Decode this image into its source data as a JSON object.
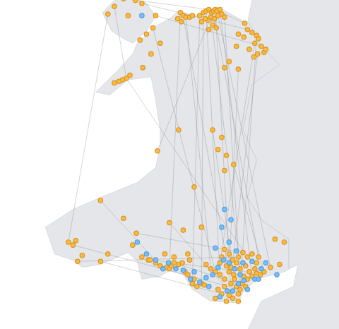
{
  "chart_data": {
    "type": "map",
    "series": [
      {
        "color": "#d4962e",
        "marker": "circle",
        "points": [
          [
            -3.62,
            53.3
          ],
          [
            -3.58,
            53.32
          ],
          [
            -3.55,
            53.33
          ],
          [
            -3.52,
            53.34
          ],
          [
            -3.49,
            53.32
          ],
          [
            -3.47,
            53.33
          ],
          [
            -3.45,
            53.34
          ],
          [
            -3.43,
            53.33
          ],
          [
            -3.4,
            53.34
          ],
          [
            -3.5,
            53.29
          ],
          [
            -3.53,
            53.27
          ],
          [
            -3.56,
            53.28
          ],
          [
            -3.6,
            53.26
          ],
          [
            -3.46,
            53.28
          ],
          [
            -3.42,
            53.3
          ],
          [
            -3.38,
            53.31
          ],
          [
            -3.35,
            53.29
          ],
          [
            -3.48,
            53.24
          ],
          [
            -3.44,
            53.22
          ],
          [
            -3.52,
            53.21
          ],
          [
            -3.83,
            53.32
          ],
          [
            -3.8,
            53.3
          ],
          [
            -3.77,
            53.29
          ],
          [
            -3.73,
            53.29
          ],
          [
            -3.7,
            53.3
          ],
          [
            -3.86,
            53.28
          ],
          [
            -3.82,
            53.26
          ],
          [
            -4.1,
            53.3
          ],
          [
            -4.13,
            53.22
          ],
          [
            -4.25,
            53.38
          ],
          [
            -4.32,
            53.4
          ],
          [
            -4.45,
            53.41
          ],
          [
            -4.55,
            53.36
          ],
          [
            -4.62,
            53.31
          ],
          [
            -4.4,
            53.3
          ],
          [
            -4.27,
            53.14
          ],
          [
            -4.2,
            53.18
          ],
          [
            -4.05,
            53.12
          ],
          [
            -4.15,
            53.05
          ],
          [
            -4.42,
            52.89
          ],
          [
            -4.46,
            52.88
          ],
          [
            -4.5,
            52.87
          ],
          [
            -4.55,
            52.86
          ],
          [
            -4.38,
            52.91
          ],
          [
            -4.24,
            52.96
          ],
          [
            -3.13,
            53.25
          ],
          [
            -3.1,
            53.21
          ],
          [
            -3.05,
            53.19
          ],
          [
            -3.0,
            53.17
          ],
          [
            -2.98,
            53.15
          ],
          [
            -3.02,
            53.12
          ],
          [
            -2.95,
            53.1
          ],
          [
            -2.99,
            53.05
          ],
          [
            -3.03,
            53.03
          ],
          [
            -2.92,
            53.06
          ],
          [
            -2.9,
            53.08
          ],
          [
            -3.08,
            53.08
          ],
          [
            -3.14,
            53.16
          ],
          [
            -3.2,
            53.18
          ],
          [
            -3.22,
            53.1
          ],
          [
            -3.3,
            53.0
          ],
          [
            -3.35,
            52.96
          ],
          [
            -3.2,
            52.95
          ],
          [
            -3.48,
            52.55
          ],
          [
            -3.38,
            52.5
          ],
          [
            -3.42,
            52.42
          ],
          [
            -3.33,
            52.38
          ],
          [
            -3.25,
            52.32
          ],
          [
            -3.35,
            52.28
          ],
          [
            -4.08,
            52.41
          ],
          [
            -3.85,
            52.55
          ],
          [
            -3.68,
            52.17
          ],
          [
            -5.05,
            51.8
          ],
          [
            -5.0,
            51.78
          ],
          [
            -4.97,
            51.81
          ],
          [
            -4.9,
            51.71
          ],
          [
            -4.7,
            51.67
          ],
          [
            -4.95,
            51.67
          ],
          [
            -4.62,
            51.72
          ],
          [
            -4.31,
            51.86
          ],
          [
            -4.35,
            51.78
          ],
          [
            -4.25,
            51.7
          ],
          [
            -4.18,
            51.68
          ],
          [
            -4.7,
            52.08
          ],
          [
            -4.45,
            51.96
          ],
          [
            -3.95,
            51.93
          ],
          [
            -3.8,
            51.88
          ],
          [
            -3.6,
            51.9
          ],
          [
            -4.16,
            51.68
          ],
          [
            -4.1,
            51.66
          ],
          [
            -4.05,
            51.64
          ],
          [
            -3.98,
            51.63
          ],
          [
            -3.95,
            51.62
          ],
          [
            -3.93,
            51.64
          ],
          [
            -3.9,
            51.66
          ],
          [
            -3.85,
            51.65
          ],
          [
            -3.81,
            51.66
          ],
          [
            -3.78,
            51.6
          ],
          [
            -3.75,
            51.58
          ],
          [
            -3.7,
            51.52
          ],
          [
            -3.68,
            51.55
          ],
          [
            -3.65,
            51.5
          ],
          [
            -3.6,
            51.52
          ],
          [
            -3.57,
            51.51
          ],
          [
            -3.9,
            51.7
          ],
          [
            -4.0,
            51.72
          ],
          [
            -3.73,
            51.68
          ],
          [
            -3.75,
            51.72
          ],
          [
            -3.55,
            51.65
          ],
          [
            -3.5,
            51.62
          ],
          [
            -3.45,
            51.6
          ],
          [
            -3.4,
            51.66
          ],
          [
            -3.38,
            51.7
          ],
          [
            -3.35,
            51.75
          ],
          [
            -3.3,
            51.72
          ],
          [
            -3.26,
            51.68
          ],
          [
            -3.22,
            51.66
          ],
          [
            -3.2,
            51.7
          ],
          [
            -3.15,
            51.73
          ],
          [
            -3.1,
            51.7
          ],
          [
            -3.05,
            51.72
          ],
          [
            -3.4,
            51.58
          ],
          [
            -3.35,
            51.55
          ],
          [
            -3.3,
            51.6
          ],
          [
            -3.25,
            51.58
          ],
          [
            -3.28,
            51.63
          ],
          [
            -3.33,
            51.64
          ],
          [
            -3.18,
            51.62
          ],
          [
            -3.12,
            51.64
          ],
          [
            -3.08,
            51.6
          ],
          [
            -3.02,
            51.62
          ],
          [
            -3.0,
            51.66
          ],
          [
            -2.98,
            51.7
          ],
          [
            -3.18,
            51.48
          ],
          [
            -3.22,
            51.5
          ],
          [
            -3.16,
            51.52
          ],
          [
            -3.12,
            51.5
          ],
          [
            -3.2,
            51.45
          ],
          [
            -3.26,
            51.42
          ],
          [
            -3.3,
            51.44
          ],
          [
            -3.38,
            51.45
          ],
          [
            -3.45,
            51.42
          ],
          [
            -3.42,
            51.48
          ],
          [
            -3.35,
            51.5
          ],
          [
            -3.28,
            51.52
          ],
          [
            -3.24,
            51.55
          ],
          [
            -3.05,
            51.57
          ],
          [
            -3.0,
            51.59
          ],
          [
            -2.96,
            51.58
          ],
          [
            -2.92,
            51.6
          ],
          [
            -3.1,
            51.55
          ],
          [
            -3.14,
            51.57
          ],
          [
            -3.2,
            51.4
          ],
          [
            -3.33,
            51.4
          ],
          [
            -2.85,
            51.63
          ],
          [
            -2.75,
            51.65
          ],
          [
            -2.7,
            51.8
          ],
          [
            -2.8,
            51.82
          ]
        ]
      },
      {
        "color": "#5b9bd5",
        "marker": "circle",
        "points": [
          [
            -4.25,
            53.3
          ],
          [
            -4.2,
            51.72
          ],
          [
            -4.1,
            51.68
          ],
          [
            -4.02,
            51.62
          ],
          [
            -3.96,
            51.66
          ],
          [
            -3.88,
            51.62
          ],
          [
            -3.8,
            51.61
          ],
          [
            -3.72,
            51.55
          ],
          [
            -3.62,
            51.53
          ],
          [
            -3.55,
            51.56
          ],
          [
            -3.48,
            51.58
          ],
          [
            -3.42,
            51.63
          ],
          [
            -3.36,
            51.68
          ],
          [
            -3.3,
            51.66
          ],
          [
            -3.24,
            51.62
          ],
          [
            -3.18,
            51.58
          ],
          [
            -3.14,
            51.54
          ],
          [
            -3.2,
            51.52
          ],
          [
            -3.26,
            51.47
          ],
          [
            -3.32,
            51.47
          ],
          [
            -3.4,
            51.43
          ],
          [
            -3.1,
            51.48
          ],
          [
            -3.02,
            51.55
          ],
          [
            -2.95,
            51.62
          ],
          [
            -2.9,
            51.66
          ],
          [
            -3.05,
            51.67
          ],
          [
            -3.15,
            51.66
          ],
          [
            -3.22,
            51.74
          ],
          [
            -3.3,
            51.8
          ],
          [
            -3.38,
            51.9
          ],
          [
            -3.35,
            52.02
          ],
          [
            -3.28,
            51.95
          ],
          [
            -3.45,
            51.76
          ],
          [
            -2.98,
            51.55
          ],
          [
            -2.78,
            51.58
          ],
          [
            -3.52,
            51.5
          ],
          [
            -4.3,
            51.8
          ],
          [
            -3.68,
            51.6
          ]
        ]
      }
    ],
    "links": [
      [
        [
          -3.5,
          53.32
        ],
        [
          -3.18,
          51.62
        ]
      ],
      [
        [
          -3.45,
          53.34
        ],
        [
          -3.3,
          51.66
        ]
      ],
      [
        [
          -3.55,
          53.33
        ],
        [
          -3.4,
          51.58
        ]
      ],
      [
        [
          -3.62,
          53.3
        ],
        [
          -3.7,
          51.52
        ]
      ],
      [
        [
          -3.4,
          53.34
        ],
        [
          -3.05,
          51.57
        ]
      ],
      [
        [
          -3.47,
          53.33
        ],
        [
          -2.98,
          51.7
        ]
      ],
      [
        [
          -3.0,
          53.17
        ],
        [
          -3.18,
          51.48
        ]
      ],
      [
        [
          -2.99,
          53.05
        ],
        [
          -3.26,
          51.68
        ]
      ],
      [
        [
          -3.02,
          53.12
        ],
        [
          -3.4,
          51.66
        ]
      ],
      [
        [
          -3.8,
          53.3
        ],
        [
          -3.28,
          51.52
        ]
      ],
      [
        [
          -3.77,
          53.29
        ],
        [
          -3.5,
          51.62
        ]
      ],
      [
        [
          -3.83,
          53.32
        ],
        [
          -3.95,
          51.62
        ]
      ],
      [
        [
          -4.13,
          53.22
        ],
        [
          -3.45,
          51.6
        ]
      ],
      [
        [
          -4.42,
          52.89
        ],
        [
          -3.1,
          51.7
        ]
      ],
      [
        [
          -4.25,
          53.38
        ],
        [
          -3.1,
          53.21
        ]
      ],
      [
        [
          -4.45,
          53.41
        ],
        [
          -3.52,
          53.34
        ]
      ],
      [
        [
          -4.1,
          53.3
        ],
        [
          -2.95,
          53.1
        ]
      ],
      [
        [
          -5.0,
          51.78
        ],
        [
          -3.18,
          51.48
        ]
      ],
      [
        [
          -4.7,
          51.67
        ],
        [
          -3.38,
          51.45
        ]
      ],
      [
        [
          -4.95,
          51.67
        ],
        [
          -3.2,
          51.7
        ]
      ],
      [
        [
          -4.31,
          51.86
        ],
        [
          -3.15,
          51.73
        ]
      ],
      [
        [
          -4.7,
          52.08
        ],
        [
          -4.05,
          51.64
        ]
      ],
      [
        [
          -4.08,
          52.41
        ],
        [
          -3.5,
          53.29
        ]
      ],
      [
        [
          -3.2,
          52.95
        ],
        [
          -3.3,
          51.6
        ]
      ],
      [
        [
          -3.48,
          52.55
        ],
        [
          -3.25,
          51.58
        ]
      ],
      [
        [
          -3.25,
          52.32
        ],
        [
          -2.92,
          51.6
        ]
      ],
      [
        [
          -4.55,
          53.36
        ],
        [
          -4.42,
          52.89
        ]
      ],
      [
        [
          -3.13,
          53.25
        ],
        [
          -3.45,
          53.34
        ]
      ],
      [
        [
          -3.35,
          53.29
        ],
        [
          -3.18,
          51.52
        ]
      ],
      [
        [
          -3.42,
          53.3
        ],
        [
          -2.85,
          51.63
        ]
      ],
      [
        [
          -3.58,
          53.32
        ],
        [
          -3.6,
          51.52
        ]
      ],
      [
        [
          -4.62,
          53.31
        ],
        [
          -5.05,
          51.8
        ]
      ],
      [
        [
          -3.9,
          51.66
        ],
        [
          -3.12,
          51.5
        ]
      ],
      [
        [
          -4.16,
          51.68
        ],
        [
          -3.0,
          51.59
        ]
      ],
      [
        [
          -3.95,
          51.93
        ],
        [
          -3.2,
          51.4
        ]
      ]
    ]
  }
}
